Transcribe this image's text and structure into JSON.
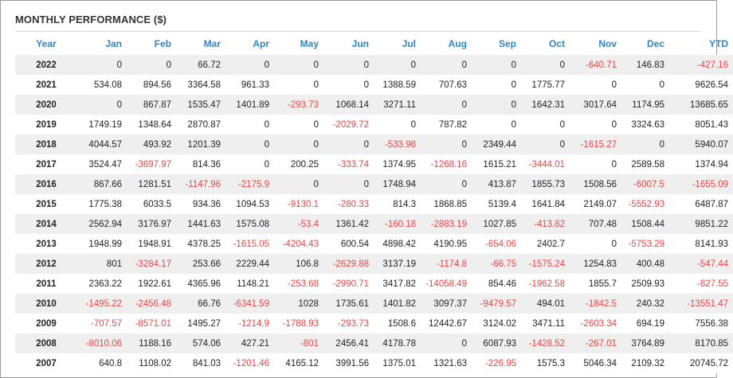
{
  "title": "MONTHLY PERFORMANCE ($)",
  "columns": [
    "Year",
    "Jan",
    "Feb",
    "Mar",
    "Apr",
    "May",
    "Jun",
    "Jul",
    "Aug",
    "Sep",
    "Oct",
    "Nov",
    "Dec",
    "YTD"
  ],
  "colors": {
    "header": "#2f86c4",
    "negative": "#e84545",
    "stripe": "#efefef"
  },
  "rows": [
    [
      "2022",
      "0",
      "0",
      "66.72",
      "0",
      "0",
      "0",
      "0",
      "0",
      "0",
      "0",
      "-640.71",
      "146.83",
      "-427.16"
    ],
    [
      "2021",
      "534.08",
      "894.56",
      "3364.58",
      "961.33",
      "0",
      "0",
      "1388.59",
      "707.63",
      "0",
      "1775.77",
      "0",
      "0",
      "9626.54"
    ],
    [
      "2020",
      "0",
      "867.87",
      "1535.47",
      "1401.89",
      "-293.73",
      "1068.14",
      "3271.11",
      "0",
      "0",
      "1642.31",
      "3017.64",
      "1174.95",
      "13685.65"
    ],
    [
      "2019",
      "1749.19",
      "1348.64",
      "2870.87",
      "0",
      "0",
      "-2029.72",
      "0",
      "787.82",
      "0",
      "0",
      "0",
      "3324.63",
      "8051.43"
    ],
    [
      "2018",
      "4044.57",
      "493.92",
      "1201.39",
      "0",
      "0",
      "0",
      "-533.98",
      "0",
      "2349.44",
      "0",
      "-1615.27",
      "0",
      "5940.07"
    ],
    [
      "2017",
      "3524.47",
      "-3697.97",
      "814.36",
      "0",
      "200.25",
      "-333.74",
      "1374.95",
      "-1268.16",
      "1615.21",
      "-3444.01",
      "0",
      "2589.58",
      "1374.94"
    ],
    [
      "2016",
      "867.66",
      "1281.51",
      "-1147.96",
      "-2175.9",
      "0",
      "0",
      "1748.94",
      "0",
      "413.87",
      "1855.73",
      "1508.56",
      "-6007.5",
      "-1655.09"
    ],
    [
      "2015",
      "1775.38",
      "6033.5",
      "934.36",
      "1094.53",
      "-9130.1",
      "-280.33",
      "814.3",
      "1868.85",
      "5139.4",
      "1641.84",
      "2149.07",
      "-5552.93",
      "6487.87"
    ],
    [
      "2014",
      "2562.94",
      "3176.97",
      "1441.63",
      "1575.08",
      "-53.4",
      "1361.42",
      "-160.18",
      "-2883.19",
      "1027.85",
      "-413.82",
      "707.48",
      "1508.44",
      "9851.22"
    ],
    [
      "2013",
      "1948.99",
      "1948.91",
      "4378.25",
      "-1615.05",
      "-4204.43",
      "600.54",
      "4898.42",
      "4190.95",
      "-654.06",
      "2402.7",
      "0",
      "-5753.29",
      "8141.93"
    ],
    [
      "2012",
      "801",
      "-3284.17",
      "253.66",
      "2229.44",
      "106.8",
      "-2629.88",
      "3137.19",
      "-1174.8",
      "-66.75",
      "-1575.24",
      "1254.83",
      "400.48",
      "-547.44"
    ],
    [
      "2011",
      "2363.22",
      "1922.61",
      "4365.96",
      "1148.21",
      "-253.68",
      "-2990.71",
      "3417.82",
      "-14058.49",
      "854.46",
      "-1962.58",
      "1855.7",
      "2509.93",
      "-827.55"
    ],
    [
      "2010",
      "-1495.22",
      "-2456.48",
      "66.76",
      "-6341.59",
      "1028",
      "1735.61",
      "1401.82",
      "3097.37",
      "-9479.57",
      "494.01",
      "-1842.5",
      "240.32",
      "-13551.47"
    ],
    [
      "2009",
      "-707.57",
      "-8571.01",
      "1495.27",
      "-1214.9",
      "-1788.93",
      "-293.73",
      "1508.6",
      "12442.67",
      "3124.02",
      "3471.11",
      "-2603.34",
      "694.19",
      "7556.38"
    ],
    [
      "2008",
      "-8010.06",
      "1188.16",
      "574.06",
      "427.21",
      "-801",
      "2456.41",
      "4178.78",
      "0",
      "6087.93",
      "-1428.52",
      "-267.01",
      "3764.89",
      "8170.85"
    ],
    [
      "2007",
      "640.8",
      "1108.02",
      "841.03",
      "-1201.46",
      "4165.12",
      "3991.56",
      "1375.01",
      "1321.63",
      "-226.95",
      "1575.3",
      "5046.34",
      "2109.32",
      "20745.72"
    ]
  ]
}
